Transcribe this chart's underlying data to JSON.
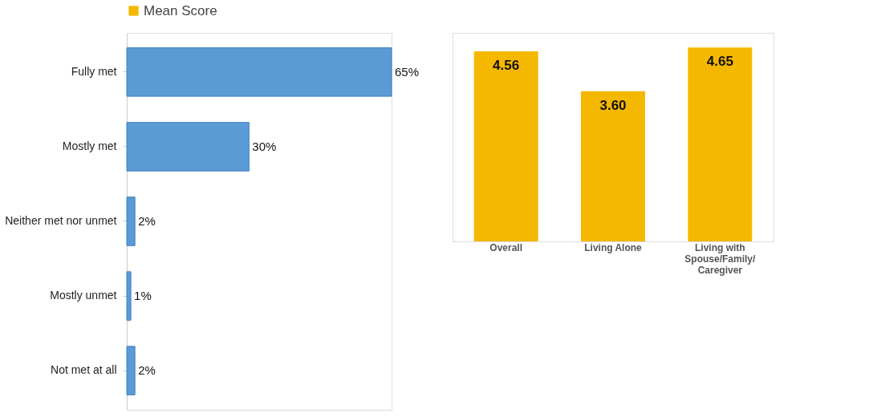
{
  "chart_data": [
    {
      "type": "bar",
      "orientation": "horizontal",
      "categories": [
        "Fully met",
        "Mostly met",
        "Neither met nor unmet",
        "Mostly unmet",
        "Not met at all"
      ],
      "values": [
        65,
        30,
        2,
        1,
        2
      ],
      "color": "#5b9bd5",
      "value_labels": [
        "65%",
        "30%",
        "2%",
        "1%",
        "2%"
      ]
    },
    {
      "type": "bar",
      "categories": [
        "Overall",
        "Living Alone",
        "Living with\nSpouse/Family/\nCaregiver"
      ],
      "series": [
        {
          "name": "Mean Score",
          "color": "#f5b800",
          "values": [
            4.56,
            3.6,
            4.65
          ],
          "value_labels": [
            "4.56",
            "3.60",
            "4.65"
          ]
        }
      ],
      "legend": "top"
    }
  ]
}
